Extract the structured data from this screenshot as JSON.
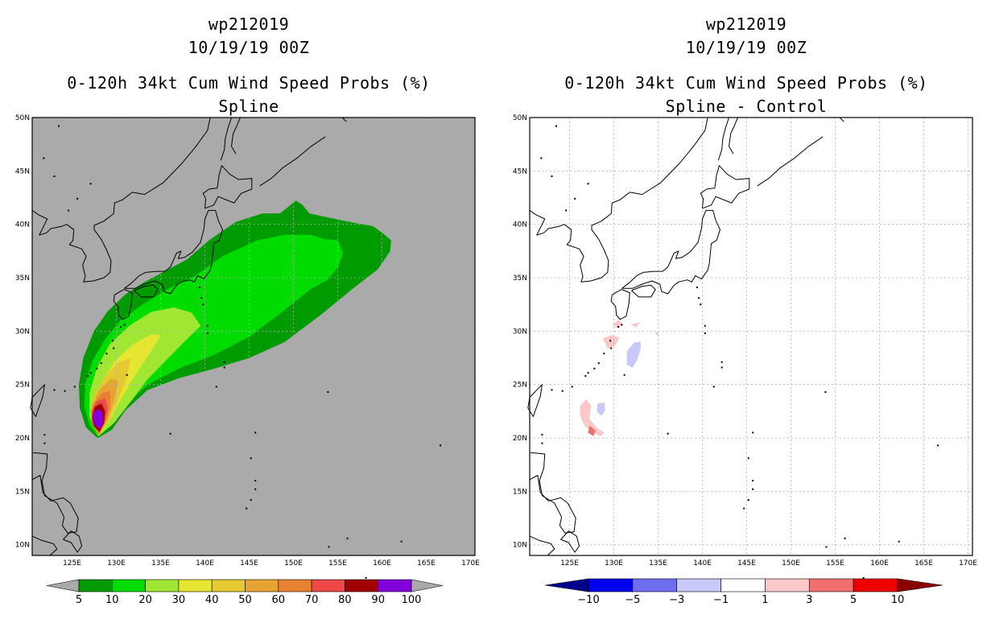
{
  "panels": [
    {
      "id": "left",
      "title_storm": "wp212019",
      "title_datetime": "10/19/19 00Z",
      "title_product": "0-120h 34kt Cum Wind Speed Probs (%)",
      "title_method": "Spline",
      "map_background": "#aaaaaa",
      "colorbar": {
        "labels": [
          "5",
          "10",
          "20",
          "30",
          "40",
          "50",
          "60",
          "70",
          "80",
          "90",
          "100"
        ],
        "colors": [
          "#009b00",
          "#00dc00",
          "#a0e632",
          "#e6e632",
          "#e6c832",
          "#e6a532",
          "#e68232",
          "#ee4848",
          "#a00000",
          "#8200dc"
        ],
        "arrow_color": "#aaaaaa"
      }
    },
    {
      "id": "right",
      "title_storm": "wp212019",
      "title_datetime": "10/19/19 00Z",
      "title_product": "0-120h 34kt Cum Wind Speed Probs (%)",
      "title_method": "Spline - Control",
      "map_background": "#ffffff",
      "colorbar": {
        "labels": [
          "−10",
          "−5",
          "−3",
          "−1",
          "1",
          "3",
          "5",
          "10"
        ],
        "colors": [
          "#0000ee",
          "#6e6ef0",
          "#c8c8fa",
          "#ffffff",
          "#fac8c8",
          "#f07070",
          "#ee0000"
        ],
        "arrow_left_color": "#00008b",
        "arrow_right_color": "#8b0000"
      }
    }
  ],
  "axes": {
    "lon_ticks": [
      "125E",
      "130E",
      "135E",
      "140E",
      "145E",
      "150E",
      "155E",
      "160E",
      "165E",
      "170E"
    ],
    "lat_ticks": [
      "50N",
      "45N",
      "40N",
      "35N",
      "30N",
      "25N",
      "20N",
      "15N",
      "10N"
    ],
    "lon_range": [
      120.5,
      170.5
    ],
    "lat_range": [
      9.0,
      50.0
    ]
  }
}
